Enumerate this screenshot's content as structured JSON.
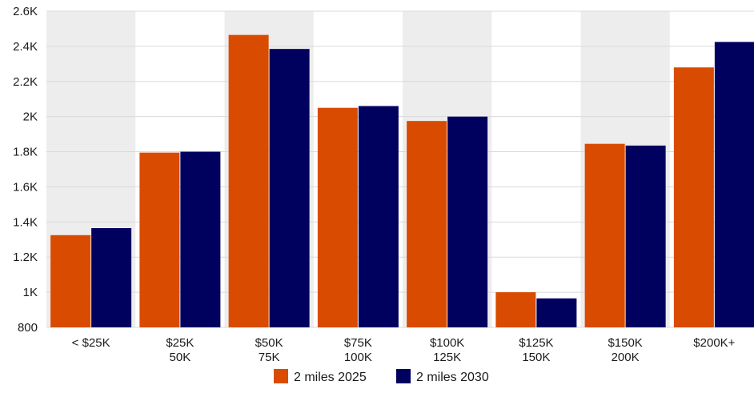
{
  "chart_data": {
    "type": "bar",
    "categories": [
      [
        "< $25K"
      ],
      [
        "$25K",
        "50K"
      ],
      [
        "$50K",
        "75K"
      ],
      [
        "$75K",
        "100K"
      ],
      [
        "$100K",
        "125K"
      ],
      [
        "$125K",
        "150K"
      ],
      [
        "$150K",
        "200K"
      ],
      [
        "$200K+"
      ]
    ],
    "series": [
      {
        "name": "2 miles 2025",
        "color": "#D94B00",
        "values": [
          1325,
          1795,
          2465,
          2050,
          1975,
          1000,
          1845,
          2280
        ]
      },
      {
        "name": "2 miles 2030",
        "color": "#00005F",
        "values": [
          1365,
          1800,
          2385,
          2060,
          2000,
          965,
          1835,
          2425
        ]
      }
    ],
    "ylim": [
      800,
      2600
    ],
    "yticks": [
      800,
      1000,
      1200,
      1400,
      1600,
      1800,
      2000,
      2200,
      2400,
      2600
    ],
    "ytick_labels": [
      "800",
      "1K",
      "1.2K",
      "1.4K",
      "1.6K",
      "1.8K",
      "2K",
      "2.2K",
      "2.4K",
      "2.6K"
    ],
    "grid": true,
    "band_color": "#EDEDED",
    "legend_position": "bottom-center"
  }
}
